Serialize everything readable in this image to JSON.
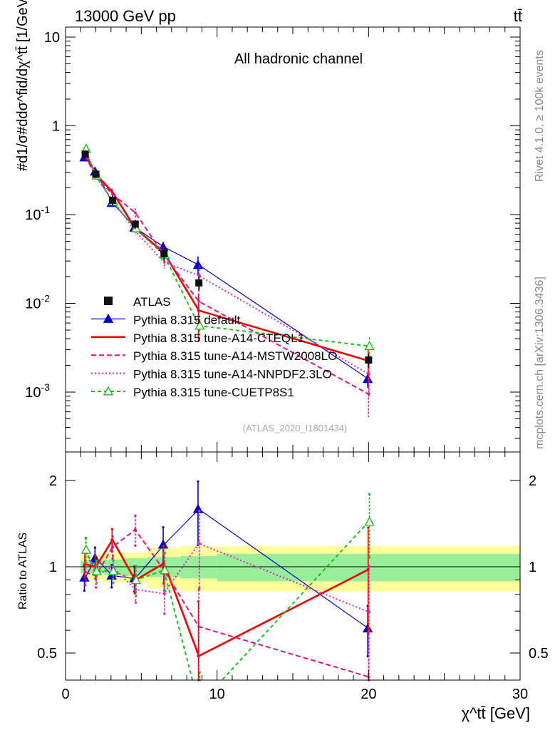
{
  "header": {
    "left": "13000 GeV pp",
    "right": "tt̄"
  },
  "side": {
    "rivet": "Rivet 4.1.0, ≥ 100k events",
    "mcplots": "mcplots.cern.ch [arXiv:1306.3436]"
  },
  "chart_data": {
    "type": "line",
    "title": "All hadronic channel",
    "analysis": "(ATLAS_2020_I1801434)",
    "xlabel": "χ^tt̄ [GeV]",
    "ylabel": "#d1/σ#ddσ^fid/dχ^tt̄ [1/GeV]",
    "ratio_ylabel": "Ratio to ATLAS",
    "xlim": [
      0,
      30
    ],
    "ylim": [
      0.0002,
      15
    ],
    "ratio_ylim": [
      0.4,
      2.4
    ],
    "x_ticks": [
      "0",
      "10",
      "20",
      "30"
    ],
    "y_ticks": [
      "10",
      "1",
      "10^-1",
      "10^-2",
      "10^-3"
    ],
    "ratio_ticks": [
      "0.5",
      "1",
      "2"
    ],
    "x": [
      1.3,
      2.0,
      3.1,
      4.6,
      6.5,
      8.8,
      20.0
    ],
    "bin_edges": [
      1.0,
      1.6,
      2.5,
      3.8,
      5.4,
      7.6,
      10.0,
      30.0
    ],
    "data": {
      "name": "ATLAS",
      "values": [
        0.48,
        0.285,
        0.145,
        0.078,
        0.036,
        0.017,
        0.0023
      ],
      "rel_err_stat": [
        0.05,
        0.05,
        0.06,
        0.07,
        0.08,
        0.09,
        0.11
      ],
      "rel_err_total": [
        0.1,
        0.1,
        0.12,
        0.12,
        0.16,
        0.18,
        0.18
      ]
    },
    "series": [
      {
        "name": "Pythia 8.315 default",
        "color": "#0000cc",
        "dash": "",
        "marker": "triangle-filled",
        "values": [
          0.44,
          0.305,
          0.135,
          0.071,
          0.043,
          0.027,
          0.0014
        ],
        "rel_err": [
          0.1,
          0.09,
          0.09,
          0.1,
          0.15,
          0.25,
          0.2
        ]
      },
      {
        "name": "Pythia 8.315 tune-A14-CTEQL1",
        "color": "#ee0000",
        "dash": "",
        "marker": "none",
        "values": [
          0.49,
          0.285,
          0.18,
          0.07,
          0.037,
          0.0083,
          0.00225
        ],
        "rel_err": [
          0.1,
          0.09,
          0.09,
          0.1,
          0.15,
          0.55,
          0.4
        ]
      },
      {
        "name": "Pythia 8.315 tune-A14-MSTW2008LO",
        "color": "#ee1177",
        "dash": "7,4",
        "marker": "none",
        "values": [
          0.46,
          0.265,
          0.17,
          0.105,
          0.035,
          0.0105,
          0.00095
        ],
        "rel_err": [
          0.1,
          0.09,
          0.09,
          0.12,
          0.15,
          0.35,
          0.45
        ]
      },
      {
        "name": "Pythia 8.315 tune-A14-NNPDF2.3LO",
        "color": "#dd22cc",
        "dash": "2,3",
        "marker": "none",
        "values": [
          0.55,
          0.265,
          0.145,
          0.065,
          0.029,
          0.0205,
          0.0016
        ],
        "rel_err": [
          0.1,
          0.09,
          0.09,
          0.1,
          0.15,
          0.3,
          0.45
        ]
      },
      {
        "name": "Pythia 8.315 tune-CUETP8S1",
        "color": "#22bb22",
        "dash": "5,4",
        "marker": "triangle-open",
        "values": [
          0.55,
          0.275,
          0.14,
          0.07,
          0.035,
          0.0056,
          0.0033
        ],
        "rel_err": [
          0.1,
          0.09,
          0.09,
          0.12,
          0.15,
          0.3,
          0.25
        ]
      }
    ]
  }
}
